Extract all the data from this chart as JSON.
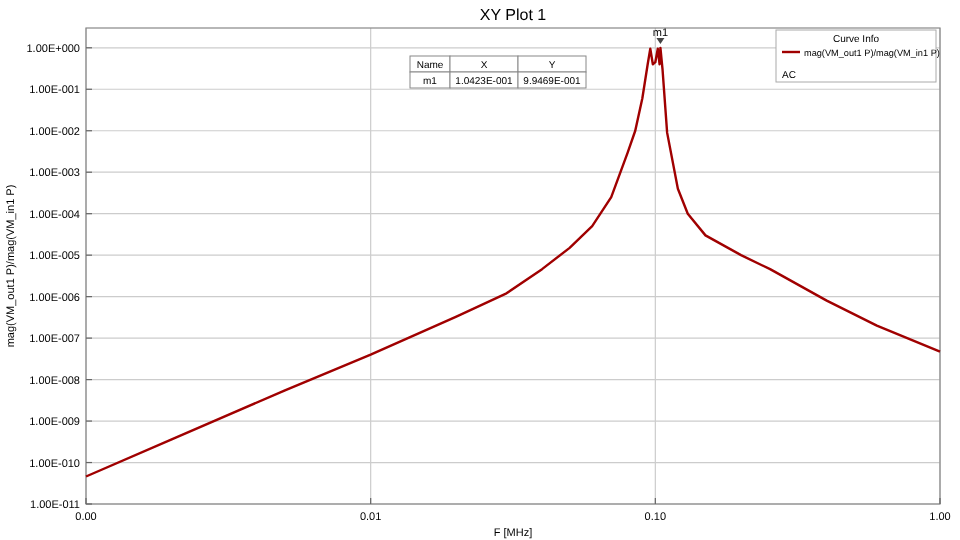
{
  "chart_data": {
    "type": "line",
    "title": "XY Plot 1",
    "xlabel": "F [MHz]",
    "ylabel": "mag(VM_out1 P)/mag(VM_in1 P)",
    "legend_title": "Curve Info",
    "log": "xy",
    "grid": true,
    "legend": "top right",
    "xlim": [
      0.001,
      1
    ],
    "ylim": [
      1e-11,
      3
    ],
    "xticks": [
      {
        "value": 0.001,
        "label": "0.00"
      },
      {
        "value": 0.01,
        "label": "0.01"
      },
      {
        "value": 0.1,
        "label": "0.10"
      },
      {
        "value": 1,
        "label": "1.00"
      }
    ],
    "yticks": [
      {
        "value": 1,
        "label": "1.00E+000"
      },
      {
        "value": 0.1,
        "label": "1.00E-001"
      },
      {
        "value": 0.01,
        "label": "1.00E-002"
      },
      {
        "value": 0.001,
        "label": "1.00E-003"
      },
      {
        "value": 0.0001,
        "label": "1.00E-004"
      },
      {
        "value": 1e-05,
        "label": "1.00E-005"
      },
      {
        "value": 1e-06,
        "label": "1.00E-006"
      },
      {
        "value": 1e-07,
        "label": "1.00E-007"
      },
      {
        "value": 1e-08,
        "label": "1.00E-008"
      },
      {
        "value": 1e-09,
        "label": "1.00E-009"
      },
      {
        "value": 1e-10,
        "label": "1.00E-010"
      },
      {
        "value": 1e-11,
        "label": "1.00E-011"
      }
    ],
    "annotations": [
      "Name",
      "X",
      "Y",
      "m1",
      "1.0423E-001",
      "9.9469E-001",
      "AC",
      {
        "text": "m1",
        "x": 0.1042,
        "y": 0.9947
      }
    ],
    "series": [
      {
        "name": "mag(VM_out1 P)/mag(VM_in1 P)",
        "color": "#a00000",
        "x": [
          0.001,
          0.002,
          0.005,
          0.01,
          0.02,
          0.03,
          0.04,
          0.05,
          0.06,
          0.07,
          0.08,
          0.085,
          0.09,
          0.094,
          0.096,
          0.098,
          0.1,
          0.102,
          0.1035,
          0.1042,
          0.106,
          0.11,
          0.12,
          0.13,
          0.15,
          0.2,
          0.253,
          0.4,
          0.6,
          1
        ],
        "values": [
          4.6e-11,
          3.6e-10,
          5.5e-09,
          4e-08,
          3.3e-07,
          1.2e-06,
          4.6e-06,
          1.5e-05,
          5e-05,
          0.00025,
          0.003,
          0.01,
          0.06,
          0.4,
          0.95,
          0.4,
          0.45,
          0.95,
          0.4,
          0.9947,
          0.3,
          0.009,
          0.0004,
          0.0001,
          3e-05,
          1e-05,
          4.6e-06,
          8e-07,
          2e-07,
          4.7e-08
        ]
      }
    ]
  }
}
